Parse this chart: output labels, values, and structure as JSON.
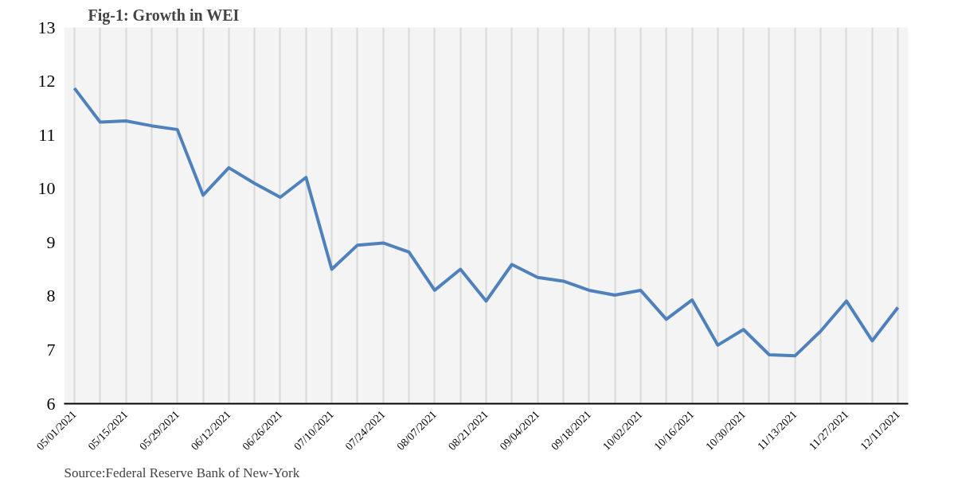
{
  "chart_data": {
    "type": "line",
    "title": "Fig-1: Growth in WEI",
    "categories": [
      "05/01/2021",
      null,
      "05/15/2021",
      null,
      "05/29/2021",
      null,
      "06/12/2021",
      null,
      "06/26/2021",
      null,
      "07/10/2021",
      null,
      "07/24/2021",
      null,
      "08/07/2021",
      null,
      "08/21/2021",
      null,
      "09/04/2021",
      null,
      "09/18/2021",
      null,
      "10/02/2021",
      null,
      "10/16/2021",
      null,
      "10/30/2021",
      null,
      "11/13/2021",
      null,
      "11/27/2021",
      null,
      "12/11/2021"
    ],
    "series": [
      {
        "color": "#4f81bd",
        "values": [
          11.87,
          11.24,
          11.26,
          11.17,
          11.1,
          9.88,
          10.39,
          10.1,
          9.84,
          10.21,
          8.5,
          8.95,
          8.99,
          8.82,
          8.11,
          8.5,
          7.91,
          8.59,
          8.35,
          8.28,
          8.11,
          8.02,
          8.11,
          7.57,
          7.93,
          7.09,
          7.38,
          6.91,
          6.89,
          7.35,
          7.91,
          7.17,
          7.79
        ]
      }
    ],
    "ylim": [
      6,
      13
    ],
    "yticks": [
      6,
      7,
      8,
      9,
      10,
      11,
      12,
      13
    ],
    "grid": "x",
    "marker": "none",
    "line_style": "solid",
    "annotations": [
      "Source:Federal Reserve Bank of New-York"
    ]
  }
}
